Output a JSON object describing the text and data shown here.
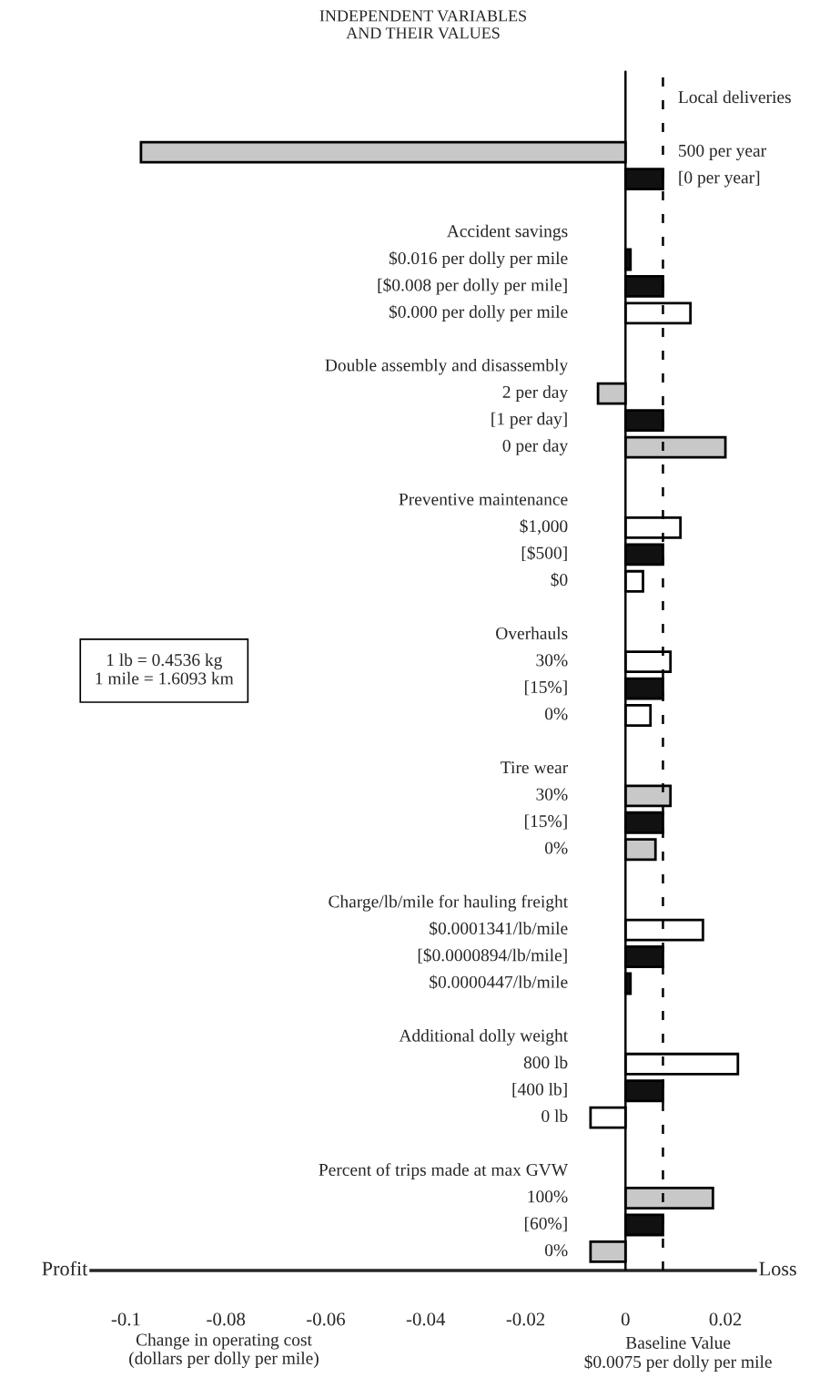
{
  "chart_data": {
    "type": "bar",
    "orientation": "horizontal",
    "title": "INDEPENDENT VARIABLES\nAND THEIR VALUES",
    "xlabel": "Change in operating cost\n(dollars per dolly per mile)",
    "categories": [
      "Local deliveries",
      null,
      "500 per year",
      "[0 per year]",
      null,
      "Accident savings",
      "$0.016 per dolly per mile",
      "[$0.008 per dolly per mile]",
      "$0.000 per dolly per mile",
      null,
      "Double assembly and disassembly",
      "2 per day",
      "[1 per day]",
      "0 per day",
      null,
      "Preventive maintenance",
      "$1,000",
      "[$500]",
      "$0",
      null,
      "Overhauls",
      "30%",
      "[15%]",
      "0%",
      null,
      "Tire wear",
      "30%",
      "[15%]",
      "0%",
      null,
      "Charge/lb/mile for hauling freight",
      "$0.0001341/lb/mile",
      "[$0.0000894/lb/mile]",
      "$0.0000447/lb/mile",
      null,
      "Additional dolly weight",
      "800 lb",
      "[400 lb]",
      "0 lb",
      null,
      "Percent of trips made at max GVW",
      "100%",
      "[60%]",
      "0%"
    ],
    "values": [
      null,
      null,
      -0.097,
      0.0075,
      null,
      null,
      0.001,
      0.0075,
      0.013,
      null,
      null,
      -0.0055,
      0.0075,
      0.02,
      null,
      null,
      0.011,
      0.0075,
      0.0035,
      null,
      null,
      0.009,
      0.0075,
      0.005,
      null,
      null,
      0.009,
      0.0075,
      0.006,
      null,
      null,
      0.0155,
      0.0075,
      0.001,
      null,
      null,
      0.0225,
      0.0075,
      -0.007,
      null,
      null,
      0.0175,
      0.0075,
      -0.007
    ],
    "colors": [
      null,
      null,
      "#c8c8c8",
      "#111111",
      null,
      null,
      "#111111",
      "#111111",
      "#ffffff",
      null,
      null,
      "#c8c8c8",
      "#111111",
      "#c8c8c8",
      null,
      null,
      "#ffffff",
      "#111111",
      "#ffffff",
      null,
      null,
      "#ffffff",
      "#111111",
      "#ffffff",
      null,
      null,
      "#c8c8c8",
      "#111111",
      "#c8c8c8",
      null,
      null,
      "#ffffff",
      "#111111",
      "#111111",
      null,
      null,
      "#ffffff",
      "#111111",
      "#ffffff",
      null,
      null,
      "#c8c8c8",
      "#111111",
      "#c8c8c8"
    ],
    "xlim": [
      -0.107,
      0.026
    ],
    "xticks": [
      -0.1,
      -0.08,
      -0.06,
      -0.04,
      -0.02,
      0,
      0.02
    ],
    "ref_lines": [
      {
        "axis": "x",
        "value": 0,
        "color": "#000000",
        "line_style": "solid"
      },
      {
        "axis": "x",
        "value": 0.0075,
        "label": "Baseline Value\n$0.0075 per dolly per mile",
        "color": "#000000",
        "line_style": "dashed"
      }
    ],
    "annotations": [
      "Profit",
      "Loss",
      "1 lb = 0.4536 kg\n1 mile = 1.6093 km"
    ],
    "grid": false,
    "legend": false
  }
}
